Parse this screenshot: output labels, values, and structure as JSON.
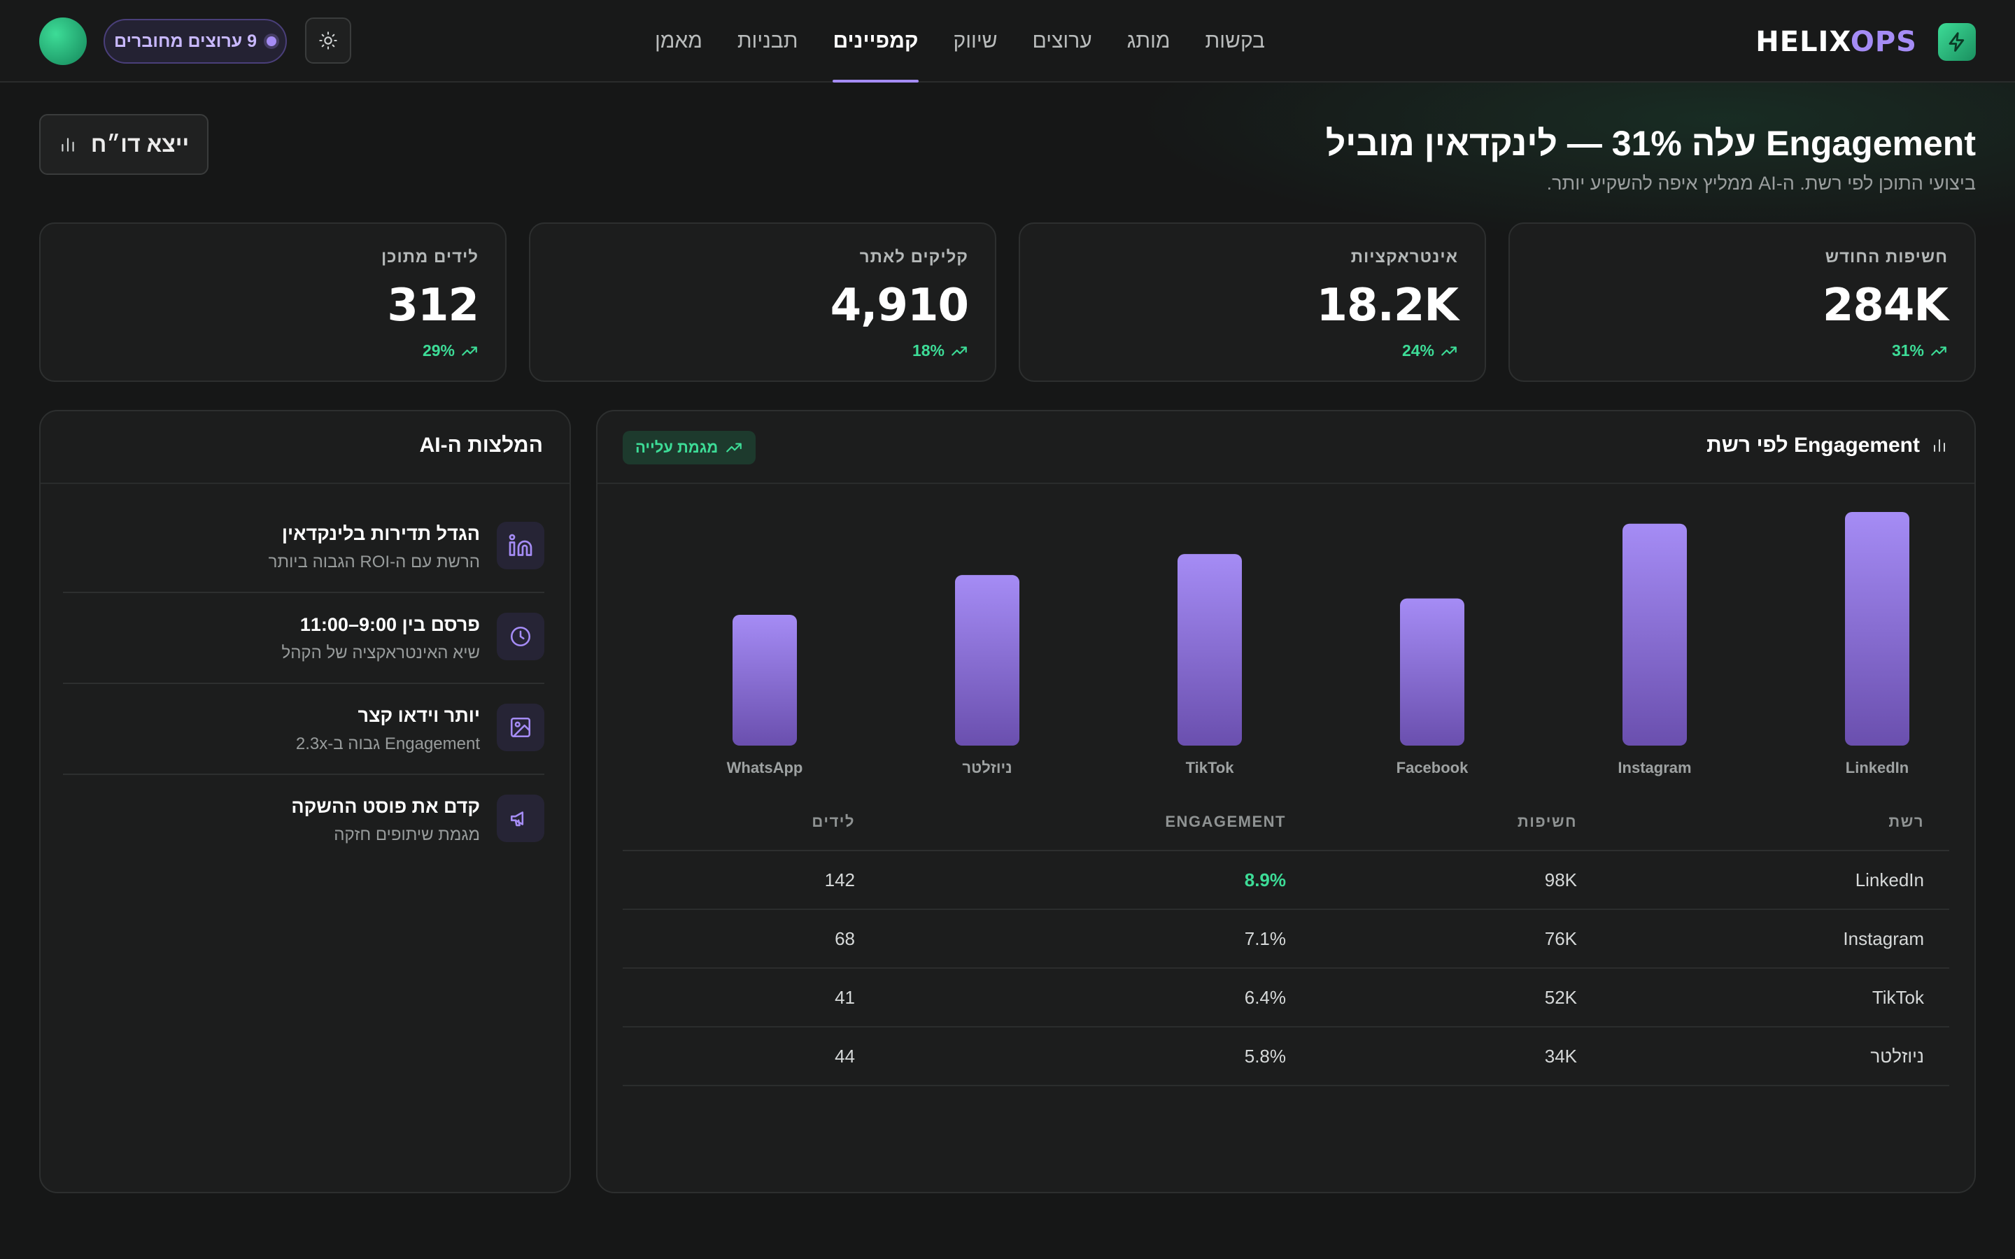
{
  "brand": {
    "part1": "HELIX",
    "part2": "OPS"
  },
  "nav": {
    "items": [
      {
        "label": "בקשות"
      },
      {
        "label": "מותג"
      },
      {
        "label": "ערוצים"
      },
      {
        "label": "שיווק"
      },
      {
        "label": "קמפיינים",
        "active": true
      },
      {
        "label": "תבניות"
      },
      {
        "label": "מאמן"
      }
    ]
  },
  "online": {
    "label": "9 ערוצים מחוברים"
  },
  "hero": {
    "title": "Engagement עלה 31% — לינקדאין מוביל",
    "subtitle": "ביצועי התוכן לפי רשת. ה-AI ממליץ איפה להשקיע יותר.",
    "export_label": "ייצא דו״ח"
  },
  "kpis": [
    {
      "label": "חשיפות החודש",
      "value": "284K",
      "delta": "31%"
    },
    {
      "label": "אינטראקציות",
      "value": "18.2K",
      "delta": "24%"
    },
    {
      "label": "קליקים לאתר",
      "value": "4,910",
      "delta": "18%"
    },
    {
      "label": "לידים מתוכן",
      "value": "312",
      "delta": "29%"
    }
  ],
  "chart_panel": {
    "title": "Engagement לפי רשת",
    "badge": "מגמת עלייה"
  },
  "chart_data": {
    "type": "bar",
    "categories": [
      "LinkedIn",
      "Instagram",
      "Facebook",
      "TikTok",
      "ניוזלטר",
      "WhatsApp"
    ],
    "values": [
      100,
      95,
      63,
      82,
      73,
      56
    ],
    "colors": {
      "bar_top": "#a58cf5",
      "bar_bottom": "#6a4fae"
    }
  },
  "table": {
    "headers": {
      "network": "רשת",
      "impressions": "חשיפות",
      "engagement": "ENGAGEMENT",
      "leads": "לידים"
    },
    "rows": [
      {
        "network": "LinkedIn",
        "impressions": "98K",
        "engagement": "8.9%",
        "leads": "142",
        "highlight": true
      },
      {
        "network": "Instagram",
        "impressions": "76K",
        "engagement": "7.1%",
        "leads": "68"
      },
      {
        "network": "TikTok",
        "impressions": "52K",
        "engagement": "6.4%",
        "leads": "41"
      },
      {
        "network": "ניוזלטר",
        "impressions": "34K",
        "engagement": "5.8%",
        "leads": "44"
      }
    ]
  },
  "ai_panel": {
    "title": "המלצות ה-AI",
    "items": [
      {
        "icon": "linkedin-icon",
        "title": "הגדל תדירות בלינקדאין",
        "subtitle": "הרשת עם ה-ROI הגבוה ביותר"
      },
      {
        "icon": "clock-icon",
        "title": "פרסם בין 9:00–11:00",
        "subtitle": "שיא האינטראקציה של הקהל"
      },
      {
        "icon": "image-icon",
        "title": "יותר וידאו קצר",
        "subtitle": "Engagement גבוה ב-2.3x"
      },
      {
        "icon": "megaphone-icon",
        "title": "קדם את פוסט ההשקה",
        "subtitle": "מגמת שיתופים חזקה"
      }
    ]
  },
  "colors": {
    "accent": "#a58cf5",
    "positive": "#3ddc97",
    "background": "#161717",
    "card": "#1c1d1d"
  }
}
